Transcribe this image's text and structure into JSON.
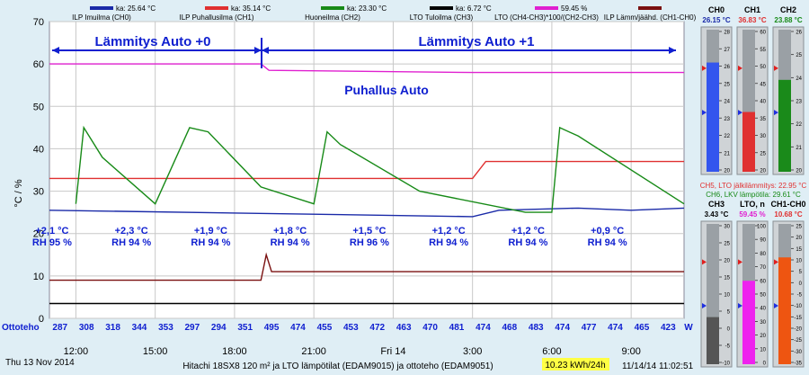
{
  "legend": [
    {
      "label": "ILP Imuilma (CH0)",
      "ka": "ka: 25.64 °C",
      "color": "#1a2aa8"
    },
    {
      "label": "ILP Puhallusilma (CH1)",
      "ka": "ka: 35.14 °C",
      "color": "#e03030"
    },
    {
      "label": "Huoneilma (CH2)",
      "ka": "ka: 23.30 °C",
      "color": "#178a17"
    },
    {
      "label": "LTO Tuloilma (CH3)",
      "ka": "ka: 6.72 °C",
      "color": "#000000"
    },
    {
      "label": "LTO (CH4-CH3)*100/(CH2-CH3)",
      "ka": "59.45 %",
      "color": "#e020d0"
    },
    {
      "label": "ILP Lämm/jäähd. (CH1-CH0)",
      "ka": "",
      "color": "#7a1010"
    }
  ],
  "annotations": {
    "mode1": "Lämmitys Auto +0",
    "mode2": "Lämmitys Auto +1",
    "fan": "Puhallus Auto"
  },
  "outdoor": [
    {
      "temp": "+2,1 °C",
      "rh": "RH 95 %"
    },
    {
      "temp": "+2,3 °C",
      "rh": "RH 94 %"
    },
    {
      "temp": "+1,9 °C",
      "rh": "RH 94 %"
    },
    {
      "temp": "+1,8 °C",
      "rh": "RH 94 %"
    },
    {
      "temp": "+1,5 °C",
      "rh": "RH 96 %"
    },
    {
      "temp": "+1,2 °C",
      "rh": "RH 94 %"
    },
    {
      "temp": "+1,2 °C",
      "rh": "RH 94 %"
    },
    {
      "temp": "+0,9 °C",
      "rh": "RH 94 %"
    }
  ],
  "ottoteho": {
    "label": "Ottoteho",
    "unit": "W",
    "values": [
      "287",
      "308",
      "318",
      "344",
      "353",
      "297",
      "294",
      "351",
      "495",
      "474",
      "455",
      "453",
      "472",
      "463",
      "470",
      "481",
      "474",
      "468",
      "483",
      "474",
      "477",
      "474",
      "465",
      "423"
    ]
  },
  "footer": {
    "date": "Thu 13 Nov 2014",
    "title": "Hitachi 18SX8 120 m² ja LTO lämpötilat (EDAM9015) ja ottoteho (EDAM9051)",
    "energy": "10.23 kWh/24h",
    "timestamp": "11/14/14 11:02:51"
  },
  "chart_data": {
    "type": "line",
    "ylabel": "°C / %",
    "ylim": [
      0,
      70
    ],
    "yticks": [
      0,
      10,
      20,
      30,
      40,
      50,
      60,
      70
    ],
    "xlabels": [
      "12:00",
      "15:00",
      "18:00",
      "21:00",
      "Fri 14",
      "3:00",
      "6:00",
      "9:00"
    ],
    "series": [
      {
        "name": "ILP Imuilma (CH0)",
        "color": "#1a2aa8",
        "values": [
          [
            0,
            25.5
          ],
          [
            16,
            24
          ],
          [
            17,
            25.5
          ],
          [
            20,
            26
          ],
          [
            22,
            25.5
          ],
          [
            24,
            26
          ]
        ]
      },
      {
        "name": "ILP Puhallusilma (CH1)",
        "color": "#e03030",
        "values": [
          [
            0,
            33
          ],
          [
            16,
            33
          ],
          [
            16.5,
            37
          ],
          [
            17,
            37
          ],
          [
            24,
            37
          ]
        ]
      },
      {
        "name": "Huoneilma (CH2)",
        "color": "#178a17",
        "values": [
          [
            1,
            27
          ],
          [
            1.3,
            45
          ],
          [
            2,
            38
          ],
          [
            4,
            27
          ],
          [
            5.3,
            45
          ],
          [
            6,
            44
          ],
          [
            8,
            31
          ],
          [
            10,
            27
          ],
          [
            10.5,
            44
          ],
          [
            11,
            41
          ],
          [
            14,
            30
          ],
          [
            18,
            25
          ],
          [
            19,
            25
          ],
          [
            19.3,
            45
          ],
          [
            20,
            43
          ],
          [
            24,
            27
          ]
        ]
      },
      {
        "name": "LTO Tuloilma (CH3)",
        "color": "#000000",
        "values": [
          [
            0,
            3.5
          ],
          [
            8,
            3.5
          ],
          [
            12,
            3.5
          ],
          [
            24,
            3.5
          ]
        ]
      },
      {
        "name": "LTO (CH4-CH3)*100/(CH2-CH3)",
        "color": "#e020d0",
        "values": [
          [
            0,
            60
          ],
          [
            8,
            60
          ],
          [
            8.3,
            58.5
          ],
          [
            16,
            58
          ],
          [
            24,
            58
          ]
        ]
      },
      {
        "name": "ILP Lämm/jäähd. (CH1-CH0)",
        "color": "#7a1010",
        "values": [
          [
            0,
            9
          ],
          [
            8,
            9
          ],
          [
            8.2,
            15
          ],
          [
            8.4,
            11
          ],
          [
            16,
            11
          ],
          [
            24,
            11
          ]
        ]
      }
    ]
  },
  "gauges": {
    "infoLine1": "CH5, LTO jälkilämmitys: 22.95 °C",
    "infoLine2": "CH6, LKV lämpötila: 29.61 °C",
    "items": [
      {
        "name": "CH0",
        "value": "26.15 °C",
        "valueColor": "#1a2aa8",
        "fill": "#3355ee",
        "min": 20,
        "max": 28,
        "level": 26.15,
        "ticks": [
          "28",
          "27",
          "26",
          "25",
          "24",
          "23",
          "22",
          "21",
          "20"
        ]
      },
      {
        "name": "CH1",
        "value": "36.83 °C",
        "valueColor": "#e03030",
        "fill": "#e03030",
        "min": 20,
        "max": 60,
        "level": 36.83,
        "ticks": [
          "60",
          "55",
          "50",
          "45",
          "40",
          "35",
          "30",
          "25",
          "20"
        ]
      },
      {
        "name": "CH2",
        "value": "23.88 °C",
        "valueColor": "#178a17",
        "fill": "#1a8a1a",
        "min": 20,
        "max": 26,
        "level": 23.88,
        "ticks": [
          "26",
          "25",
          "24",
          "23",
          "22",
          "21",
          "20"
        ]
      },
      {
        "name": "CH3",
        "value": "3.43 °C",
        "valueColor": "#000000",
        "fill": "#555555",
        "min": -10,
        "max": 30,
        "level": 3.43,
        "ticks": [
          "30",
          "25",
          "20",
          "15",
          "10",
          "5",
          "0",
          "-5",
          "-10"
        ]
      },
      {
        "name": "LTO, n",
        "value": "59.45 %",
        "valueColor": "#e020d0",
        "fill": "#ee22ee",
        "min": 0,
        "max": 100,
        "level": 59.45,
        "ticks": [
          "100",
          "90",
          "80",
          "70",
          "60",
          "50",
          "40",
          "30",
          "20",
          "10",
          "0"
        ]
      },
      {
        "name": "CH1-CH0",
        "value": "10.68 °C",
        "valueColor": "#e03030",
        "fill": "#ee5511",
        "min": -35,
        "max": 25,
        "level": 10.68,
        "ticks": [
          "25",
          "20",
          "15",
          "10",
          "5",
          "0",
          "-5",
          "-10",
          "-15",
          "-20",
          "-25",
          "-30",
          "-35"
        ]
      }
    ]
  }
}
